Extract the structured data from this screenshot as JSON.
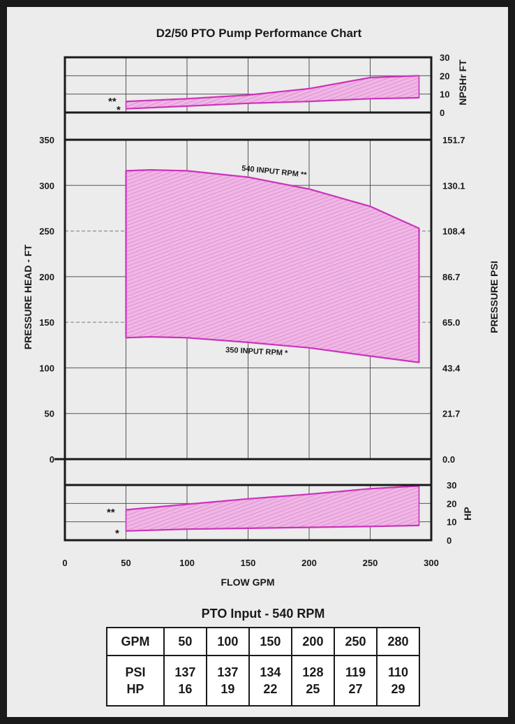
{
  "chart_data": [
    {
      "type": "area",
      "title": "D2/50 PTO Pump Performance Chart",
      "panel": "npsh",
      "ylabel_right": "NPSHr FT",
      "ylim": [
        0,
        30
      ],
      "yticks_right": [
        "30",
        "20",
        "10",
        "0"
      ],
      "xlim": [
        0,
        300
      ],
      "series": [
        {
          "marker": "**",
          "x": [
            50,
            100,
            150,
            200,
            250,
            290
          ],
          "y": [
            6,
            7.5,
            9.5,
            13,
            19,
            20
          ]
        },
        {
          "marker": "*",
          "x": [
            50,
            100,
            150,
            200,
            250,
            290
          ],
          "y": [
            2,
            3.5,
            5,
            6,
            7.5,
            8
          ]
        }
      ],
      "grid": true
    },
    {
      "type": "area",
      "panel": "pressure",
      "ylabel": "PRESSURE HEAD - FT",
      "ylabel_right": "PRESSURE PSI",
      "ylim": [
        0,
        350
      ],
      "yticks_left": [
        "350",
        "300",
        "250",
        "200",
        "150",
        "100",
        "50",
        "0"
      ],
      "yticks_right": [
        "151.7",
        "130.1",
        "108.4",
        "86.7",
        "65.0",
        "43.4",
        "21.7",
        "0.0"
      ],
      "xlim": [
        0,
        300
      ],
      "series": [
        {
          "name": "540 INPUT RPM **",
          "x": [
            50,
            70,
            100,
            150,
            200,
            250,
            290
          ],
          "y": [
            316,
            317,
            316,
            309,
            296,
            277,
            253
          ]
        },
        {
          "name": "350 INPUT RPM *",
          "x": [
            50,
            70,
            100,
            150,
            200,
            250,
            290
          ],
          "y": [
            133,
            134,
            133,
            128,
            122,
            113,
            106
          ]
        }
      ],
      "grid": true
    },
    {
      "type": "area",
      "panel": "hp",
      "ylabel_right": "HP",
      "ylim": [
        0,
        30
      ],
      "yticks_right": [
        "30",
        "20",
        "10",
        "0"
      ],
      "xlim": [
        0,
        300
      ],
      "xlabel": "FLOW GPM",
      "xticks": [
        "0",
        "50",
        "100",
        "150",
        "200",
        "250",
        "300"
      ],
      "series": [
        {
          "marker": "**",
          "x": [
            50,
            100,
            150,
            200,
            250,
            290
          ],
          "y": [
            16.5,
            19.5,
            22.5,
            25,
            28,
            29.5
          ]
        },
        {
          "marker": "*",
          "x": [
            50,
            100,
            150,
            200,
            250,
            290
          ],
          "y": [
            5,
            6,
            6.5,
            7,
            7.5,
            8
          ]
        }
      ],
      "grid": true
    },
    {
      "type": "table",
      "title": "PTO Input - 540 RPM",
      "row_headers": [
        "GPM",
        "PSI",
        "HP"
      ],
      "gpm": [
        "50",
        "100",
        "150",
        "200",
        "250",
        "280"
      ],
      "psi": [
        "137",
        "137",
        "134",
        "128",
        "119",
        "110"
      ],
      "hp": [
        "16",
        "19",
        "22",
        "25",
        "27",
        "29"
      ]
    }
  ],
  "colors": {
    "fill": "#e9a6dc",
    "curve": "#cc33bb",
    "frame": "#1a1a1a",
    "background": "#ececec"
  }
}
